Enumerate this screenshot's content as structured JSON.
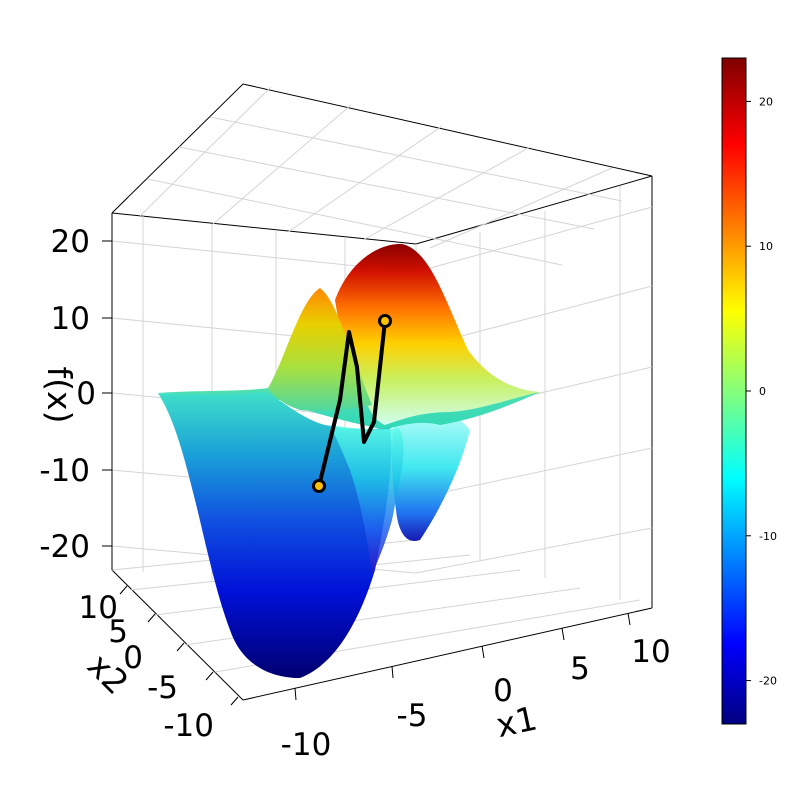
{
  "chart_data": {
    "type": "surface",
    "title": "",
    "xlabel": "x1",
    "ylabel": "x2",
    "zlabel": "f(x)",
    "xlim": [
      -12,
      12
    ],
    "ylim": [
      -12,
      12
    ],
    "zlim": [
      -23,
      23
    ],
    "x_ticks": [
      "-10",
      "-5",
      "0",
      "5",
      "10"
    ],
    "y_ticks": [
      "-10",
      "-5",
      "0",
      "5",
      "10"
    ],
    "z_ticks": [
      "-20",
      "-10",
      "0",
      "10",
      "20"
    ],
    "grid": true,
    "colorbar": {
      "min": -23,
      "max": 23,
      "ticks": [
        "-20",
        "-10",
        "0",
        "10",
        "20"
      ],
      "colormap": [
        "#00007f",
        "#0000ff",
        "#00ffff",
        "#ffff00",
        "#ff0000",
        "#7f0000"
      ]
    },
    "path": {
      "points_xyz": [
        [
          -4.5,
          0,
          -12.3
        ],
        [
          -2,
          2,
          7.5
        ],
        [
          -1.5,
          1.5,
          5
        ],
        [
          -0.5,
          0.5,
          -6.5
        ],
        [
          0.5,
          -0.5,
          -4
        ],
        [
          1.5,
          -1.5,
          9.3
        ]
      ],
      "start": [
        -4.5,
        0,
        -12.3
      ],
      "end": [
        1.5,
        -1.5,
        9.3
      ],
      "line_color": "#000000",
      "marker_color": "#ffc000"
    }
  }
}
